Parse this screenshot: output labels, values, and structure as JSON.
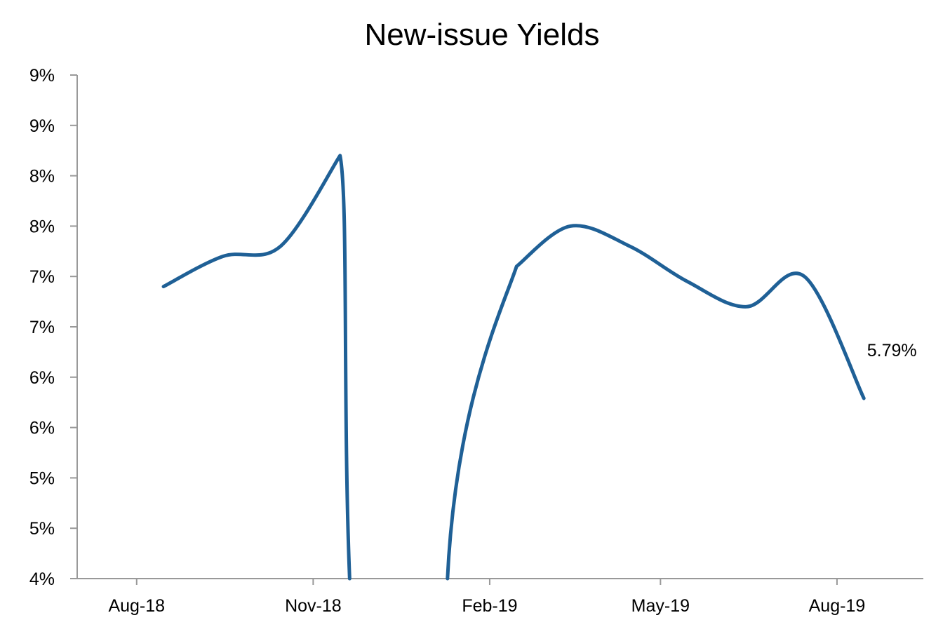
{
  "chart_data": {
    "type": "line",
    "title": "New-issue Yields",
    "xlabel": "",
    "ylabel": "",
    "x_tick_labels": [
      "Aug-18",
      "Nov-18",
      "Feb-19",
      "May-19",
      "Aug-19"
    ],
    "y_tick_labels": [
      "4%",
      "5%",
      "5%",
      "6%",
      "6%",
      "7%",
      "7%",
      "8%",
      "8%",
      "9%",
      "9%"
    ],
    "ylim": [
      4.0,
      9.0
    ],
    "grid": false,
    "legend": "none",
    "line_color": "#1f6096",
    "x": [
      "2018-08-15",
      "2018-09-15",
      "2018-10-15",
      "2018-11-15",
      "2018-12-15",
      "2019-01-15",
      "2019-02-15",
      "2019-03-15",
      "2019-04-15",
      "2019-05-15",
      "2019-06-15",
      "2019-07-15",
      "2019-08-15"
    ],
    "values": [
      6.9,
      7.2,
      7.3,
      8.2,
      null,
      null,
      7.1,
      7.5,
      7.3,
      6.95,
      6.7,
      7.0,
      5.79
    ],
    "drop_below_axis": [
      "2018-11-20",
      "2019-01-10"
    ],
    "annotation": {
      "text": "5.79%",
      "x": "2019-08-15",
      "value": 5.79
    }
  }
}
